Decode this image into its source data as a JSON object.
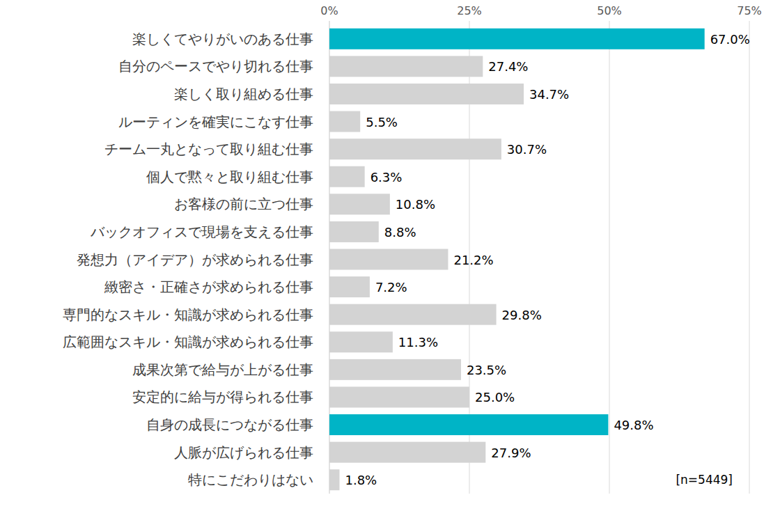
{
  "chart_data": {
    "type": "bar",
    "orientation": "horizontal",
    "categories": [
      "楽しくてやりがいのある仕事",
      "自分のペースでやり切れる仕事",
      "楽しく取り組める仕事",
      "ルーティンを確実にこなす仕事",
      "チーム一丸となって取り組む仕事",
      "個人で黙々と取り組む仕事",
      "お客様の前に立つ仕事",
      "バックオフィスで現場を支える仕事",
      "発想力（アイデア）が求められる仕事",
      "緻密さ・正確さが求められる仕事",
      "専門的なスキル・知識が求められる仕事",
      "広範囲なスキル・知識が求められる仕事",
      "成果次第で給与が上がる仕事",
      "安定的に給与が得られる仕事",
      "自身の成長につながる仕事",
      "人脈が広げられる仕事",
      "特にこだわりはない"
    ],
    "values": [
      67.0,
      27.4,
      34.7,
      5.5,
      30.7,
      6.3,
      10.8,
      8.8,
      21.2,
      7.2,
      29.8,
      11.3,
      23.5,
      25.0,
      49.8,
      27.9,
      1.8
    ],
    "value_labels": [
      "67.0%",
      "27.4%",
      "34.7%",
      "5.5%",
      "30.7%",
      "6.3%",
      "10.8%",
      "8.8%",
      "21.2%",
      "7.2%",
      "29.8%",
      "11.3%",
      "23.5%",
      "25.0%",
      "49.8%",
      "27.9%",
      "1.8%"
    ],
    "colors": [
      "#00b4c6",
      "#d3d3d3",
      "#d3d3d3",
      "#d3d3d3",
      "#d3d3d3",
      "#d3d3d3",
      "#d3d3d3",
      "#d3d3d3",
      "#d3d3d3",
      "#d3d3d3",
      "#d3d3d3",
      "#d3d3d3",
      "#d3d3d3",
      "#d3d3d3",
      "#00b4c6",
      "#d3d3d3",
      "#d3d3d3"
    ],
    "xlim": [
      0,
      75
    ],
    "xticks": [
      {
        "value": 0,
        "label": "0%"
      },
      {
        "value": 25,
        "label": "25%"
      },
      {
        "value": 50,
        "label": "50%"
      },
      {
        "value": 75,
        "label": "75%"
      }
    ],
    "grid": true,
    "data_labels": true,
    "annotation": "[n=5449]"
  }
}
